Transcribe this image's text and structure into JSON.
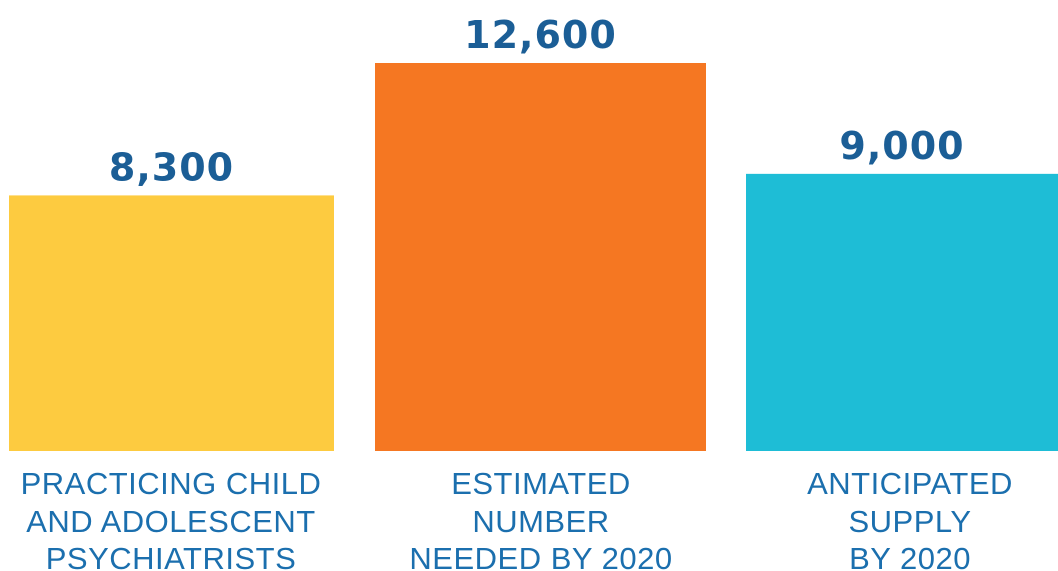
{
  "chart_data": {
    "type": "bar",
    "categories": [
      [
        "PRACTICING CHILD",
        "AND ADOLESCENT",
        "PSYCHIATRISTS"
      ],
      [
        "ESTIMATED",
        "NUMBER",
        "NEEDED BY 2020"
      ],
      [
        "ANTICIPATED",
        "SUPPLY",
        "BY 2020"
      ]
    ],
    "values": [
      8300,
      12600,
      9000
    ],
    "value_labels": [
      "8,300",
      "12,600",
      "9,000"
    ],
    "bar_colors": [
      "#FDCB40",
      "#F57722",
      "#1EBDD6"
    ],
    "value_label_color": "#1B5E96",
    "category_label_color": "#1B6FAE",
    "title": "",
    "xlabel": "",
    "ylabel": "",
    "ylim": [
      0,
      12600
    ],
    "grid": false,
    "legend": "none"
  }
}
